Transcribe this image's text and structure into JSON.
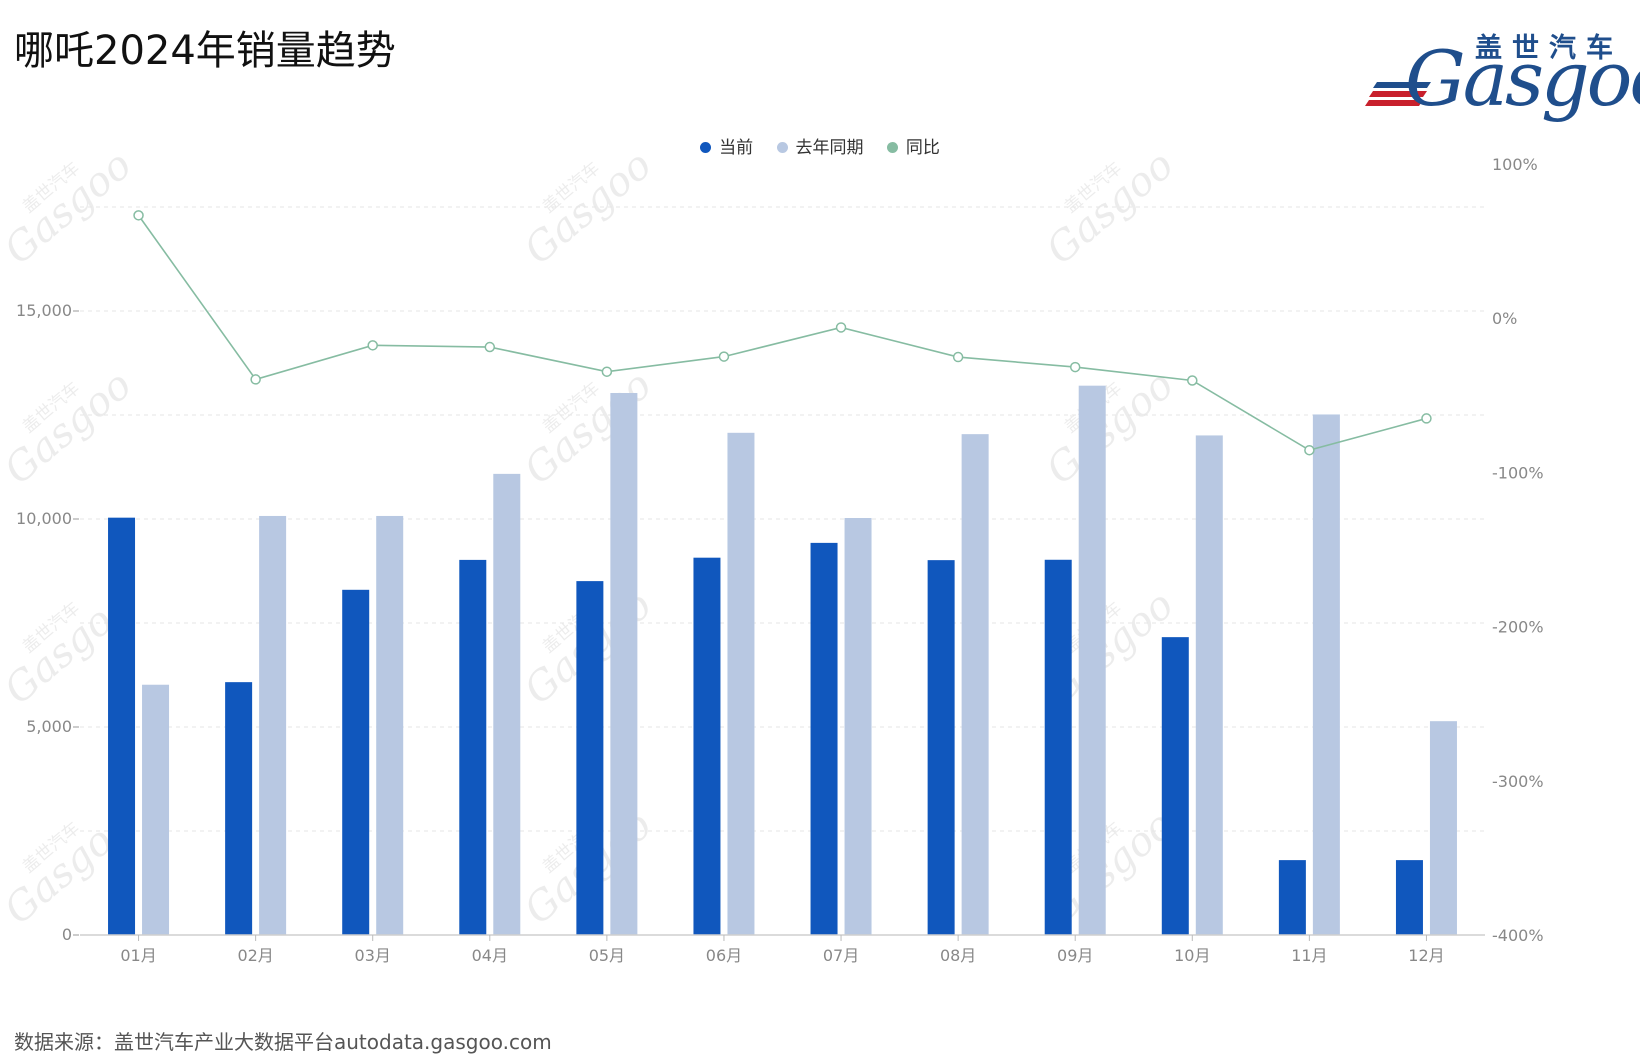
{
  "title": "哪吒2024年销量趋势",
  "source": "数据来源：盖世汽车产业大数据平台autodata.gasgoo.com",
  "logo": {
    "cn": "盖世汽车",
    "en": "Gasgoo"
  },
  "watermark": {
    "cn": "盖世汽车",
    "en": "Gasgoo"
  },
  "colors": {
    "current": "#1057bd",
    "last_year": "#b8c8e2",
    "yoy": "#86bca2"
  },
  "chart_data": {
    "type": "bar",
    "categories": [
      "01月",
      "02月",
      "03月",
      "04月",
      "05月",
      "06月",
      "07月",
      "08月",
      "09月",
      "10月",
      "11月",
      "12月"
    ],
    "series": [
      {
        "name": "当前",
        "type": "bar",
        "axis": "left",
        "values": [
          10032,
          6078,
          8298,
          9017,
          8507,
          9070,
          9426,
          9011,
          9020,
          7160,
          1800,
          1800
        ]
      },
      {
        "name": "去年同期",
        "type": "bar",
        "axis": "left",
        "values": [
          6016,
          10073,
          10073,
          11085,
          13029,
          12072,
          10024,
          12040,
          13205,
          12009,
          12513,
          5140
        ]
      },
      {
        "name": "同比",
        "type": "line",
        "axis": "right",
        "unit": "%",
        "values": [
          66.7,
          -39.7,
          -17.6,
          -18.7,
          -34.7,
          -24.9,
          -6.0,
          -25.2,
          -31.7,
          -40.4,
          -85.6,
          -65.0
        ]
      }
    ],
    "y_left": {
      "min": 0,
      "max": 18500,
      "ticks": [
        0,
        5000,
        10000,
        15000
      ],
      "tick_labels": [
        "0",
        "5,000",
        "10,000",
        "15,000"
      ]
    },
    "y_right": {
      "min": -400,
      "max": 100,
      "ticks": [
        -400,
        -300,
        -200,
        -100,
        0,
        100
      ],
      "tick_labels": [
        "-400%",
        "-300%",
        "-200%",
        "-100%",
        "0%",
        "100%"
      ]
    },
    "legend": "top-center",
    "grid": true
  }
}
